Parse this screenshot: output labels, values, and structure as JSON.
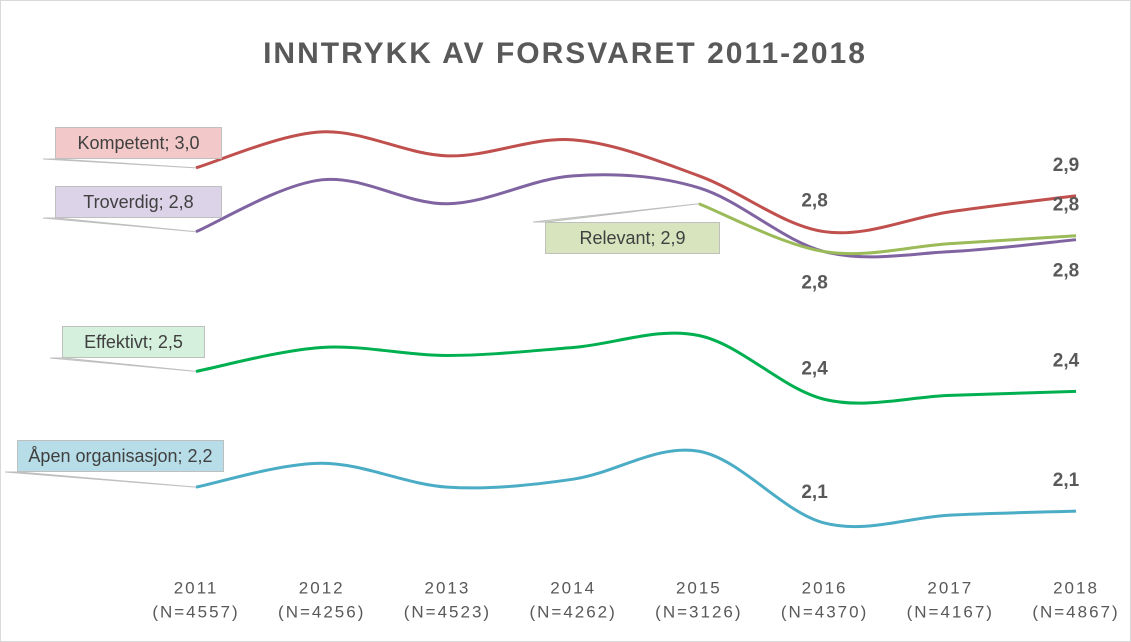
{
  "chart_data": {
    "type": "line",
    "title": "INNTRYKK AV FORSVARET 2011-2018",
    "categories": [
      "2011",
      "2012",
      "2013",
      "2014",
      "2015",
      "2016",
      "2017",
      "2018"
    ],
    "sample_sizes": [
      "(N=4557)",
      "(N=4256)",
      "(N=4523)",
      "(N=4262)",
      "(N=3126)",
      "(N=4370)",
      "(N=4167)",
      "(N=4867)"
    ],
    "series": [
      {
        "color": "#c0504d",
        "label_fill": "#f2c9c8",
        "values": [
          3.0,
          3.09,
          3.03,
          3.07,
          2.98,
          2.84,
          2.89,
          2.93
        ],
        "value_labels": [
          "Kompetent; 3,0",
          null,
          null,
          null,
          null,
          "2,8",
          null,
          "2,9"
        ]
      },
      {
        "color": "#8064a2",
        "label_fill": "#dcd3e8",
        "values": [
          2.84,
          2.97,
          2.91,
          2.98,
          2.95,
          2.79,
          2.79,
          2.82
        ],
        "value_labels": [
          "Troverdig; 2,8",
          null,
          null,
          null,
          null,
          "2,8",
          null,
          "2,8"
        ]
      },
      {
        "color": "#9bbb59",
        "label_fill": "#d7e4bd",
        "values": [
          null,
          null,
          null,
          null,
          2.91,
          2.79,
          2.81,
          2.83
        ],
        "value_labels": [
          null,
          null,
          null,
          null,
          "Relevant; 2,9",
          null,
          null,
          "2,8"
        ]
      },
      {
        "color": "#00b050",
        "label_fill": "#d5f0dc",
        "values": [
          2.49,
          2.55,
          2.53,
          2.55,
          2.58,
          2.42,
          2.43,
          2.44
        ],
        "value_labels": [
          "Effektivt; 2,5",
          null,
          null,
          null,
          null,
          "2,4",
          null,
          "2,4"
        ]
      },
      {
        "color": "#4bacc6",
        "label_fill": "#b7dde8",
        "values": [
          2.2,
          2.26,
          2.2,
          2.22,
          2.29,
          2.11,
          2.13,
          2.14
        ],
        "value_labels": [
          "Åpen organisasjon; 2,2",
          null,
          null,
          null,
          null,
          "2,1",
          null,
          "2,1"
        ]
      }
    ],
    "ylim": [
      1.99,
      3.2
    ]
  }
}
